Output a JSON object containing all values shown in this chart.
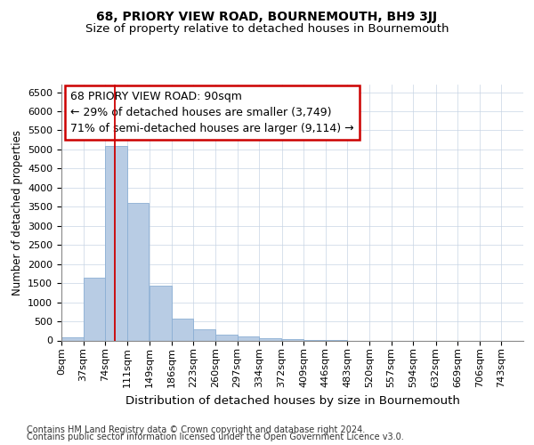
{
  "title1": "68, PRIORY VIEW ROAD, BOURNEMOUTH, BH9 3JJ",
  "title2": "Size of property relative to detached houses in Bournemouth",
  "xlabel": "Distribution of detached houses by size in Bournemouth",
  "ylabel": "Number of detached properties",
  "footnote1": "Contains HM Land Registry data © Crown copyright and database right 2024.",
  "footnote2": "Contains public sector information licensed under the Open Government Licence v3.0.",
  "bar_color": "#b8cce4",
  "bar_edge_color": "#8bafd4",
  "grid_color": "#c8d4e4",
  "annotation_box_color": "#cc0000",
  "annotation_line1": "68 PRIORY VIEW ROAD: 90sqm",
  "annotation_line2": "← 29% of detached houses are smaller (3,749)",
  "annotation_line3": "71% of semi-detached houses are larger (9,114) →",
  "property_line_x": 90,
  "categories": [
    "0sqm",
    "37sqm",
    "74sqm",
    "111sqm",
    "149sqm",
    "186sqm",
    "223sqm",
    "260sqm",
    "297sqm",
    "334sqm",
    "372sqm",
    "409sqm",
    "446sqm",
    "483sqm",
    "520sqm",
    "557sqm",
    "594sqm",
    "632sqm",
    "669sqm",
    "706sqm",
    "743sqm"
  ],
  "bin_starts": [
    0,
    37,
    74,
    111,
    149,
    186,
    223,
    260,
    297,
    334,
    372,
    409,
    446,
    483,
    520,
    557,
    594,
    632,
    669,
    706,
    743
  ],
  "bin_width": 37,
  "values": [
    75,
    1650,
    5100,
    3600,
    1430,
    580,
    300,
    155,
    105,
    60,
    25,
    8,
    3,
    0,
    0,
    0,
    0,
    0,
    0,
    0,
    0
  ],
  "ylim": [
    0,
    6700
  ],
  "yticks": [
    0,
    500,
    1000,
    1500,
    2000,
    2500,
    3000,
    3500,
    4000,
    4500,
    5000,
    5500,
    6000,
    6500
  ],
  "background_color": "#ffffff",
  "title1_fontsize": 10,
  "title2_fontsize": 9.5,
  "ylabel_fontsize": 8.5,
  "xlabel_fontsize": 9.5,
  "tick_fontsize": 8,
  "footnote_fontsize": 7,
  "annot_fontsize": 9
}
